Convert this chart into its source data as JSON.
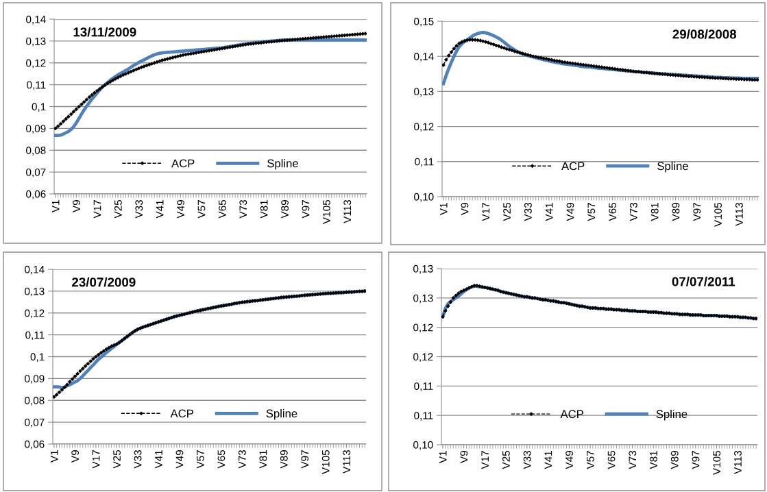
{
  "chart_data": [
    {
      "type": "line",
      "title": "13/11/2009",
      "categories": [
        "V1",
        null,
        null,
        null,
        null,
        null,
        null,
        null,
        "V9",
        null,
        null,
        null,
        null,
        null,
        null,
        null,
        "V17",
        null,
        null,
        null,
        null,
        null,
        null,
        null,
        "V25",
        null,
        null,
        null,
        null,
        null,
        null,
        null,
        "V33",
        null,
        null,
        null,
        null,
        null,
        null,
        null,
        "V41",
        null,
        null,
        null,
        null,
        null,
        null,
        null,
        "V49",
        null,
        null,
        null,
        null,
        null,
        null,
        null,
        "V57",
        null,
        null,
        null,
        null,
        null,
        null,
        null,
        "V65",
        null,
        null,
        null,
        null,
        null,
        null,
        null,
        "V73",
        null,
        null,
        null,
        null,
        null,
        null,
        null,
        "V81",
        null,
        null,
        null,
        null,
        null,
        null,
        null,
        "V89",
        null,
        null,
        null,
        null,
        null,
        null,
        null,
        "V97",
        null,
        null,
        null,
        null,
        null,
        null,
        null,
        "V105",
        null,
        null,
        null,
        null,
        null,
        null,
        null,
        "V113",
        null,
        null,
        null,
        null,
        null,
        null,
        null
      ],
      "ylim": [
        0.06,
        0.14
      ],
      "yticks": [
        {
          "value": 0.06,
          "label": "0,06"
        },
        {
          "value": 0.07,
          "label": "0,07"
        },
        {
          "value": 0.08,
          "label": "0,08"
        },
        {
          "value": 0.09,
          "label": "0,09"
        },
        {
          "value": 0.1,
          "label": "0,1"
        },
        {
          "value": 0.11,
          "label": "0,11"
        },
        {
          "value": 0.12,
          "label": "0,12"
        },
        {
          "value": 0.13,
          "label": "0,13"
        },
        {
          "value": 0.14,
          "label": "0,14"
        }
      ],
      "grid": "y",
      "legend": "bottom",
      "series": [
        {
          "name": "ACP",
          "color": "#000000",
          "marker": "diamond",
          "line_style": "dashed",
          "values": [
            0.09,
            0.091,
            0.0921,
            0.0932,
            0.0943,
            0.0954,
            0.0965,
            0.0977,
            0.0988,
            0.0999,
            0.101,
            0.1021,
            0.1032,
            0.1043,
            0.1053,
            0.1063,
            0.1072,
            0.1081,
            0.109,
            0.1098,
            0.1106,
            0.1113,
            0.112,
            0.1127,
            0.1133,
            0.1139,
            0.1145,
            0.115,
            0.1155,
            0.116,
            0.1165,
            0.117,
            0.1175,
            0.118,
            0.1184,
            0.1188,
            0.1192,
            0.1196,
            0.12,
            0.1204,
            0.1208,
            0.1212,
            0.1215,
            0.1218,
            0.1221,
            0.1224,
            0.1227,
            0.123,
            0.1233,
            0.1236,
            0.1238,
            0.124,
            0.1242,
            0.1244,
            0.1246,
            0.1248,
            0.125,
            0.1252,
            0.1254,
            0.1256,
            0.1258,
            0.126,
            0.1262,
            0.1264,
            0.1266,
            0.1268,
            0.127,
            0.1272,
            0.1274,
            0.1276,
            0.1278,
            0.128,
            0.1282,
            0.1284,
            0.1286,
            0.1287,
            0.1288,
            0.129,
            0.1291,
            0.1292,
            0.1294,
            0.1295,
            0.1296,
            0.1297,
            0.1298,
            0.13,
            0.1301,
            0.1302,
            0.1303,
            0.1304,
            0.1305,
            0.1306,
            0.1307,
            0.1308,
            0.1309,
            0.131,
            0.1311,
            0.1312,
            0.1313,
            0.1314,
            0.1315,
            0.1316,
            0.1317,
            0.1318,
            0.1319,
            0.132,
            0.1321,
            0.1322,
            0.1323,
            0.1324,
            0.1325,
            0.1326,
            0.1327,
            0.1328,
            0.1329,
            0.133,
            0.1331,
            0.1332,
            0.1333,
            0.1334
          ]
        },
        {
          "name": "Spline",
          "color": "#4f81bd",
          "marker": "none",
          "line_style": "solid",
          "values": [
            0.0868,
            0.0868,
            0.0869,
            0.0874,
            0.088,
            0.0886,
            0.0895,
            0.0908,
            0.0925,
            0.0945,
            0.0965,
            0.0985,
            0.1002,
            0.1018,
            0.1034,
            0.1048,
            0.1062,
            0.1076,
            0.1089,
            0.11,
            0.111,
            0.112,
            0.1129,
            0.1137,
            0.1145,
            0.1152,
            0.1158,
            0.1165,
            0.1172,
            0.118,
            0.1188,
            0.1195,
            0.1202,
            0.1208,
            0.1214,
            0.122,
            0.1226,
            0.1232,
            0.1237,
            0.1241,
            0.1244,
            0.1246,
            0.1247,
            0.1248,
            0.1249,
            0.125,
            0.1251,
            0.1252,
            0.1253,
            0.1254,
            0.1255,
            0.1256,
            0.1257,
            0.1258,
            0.1259,
            0.126,
            0.1261,
            0.1262,
            0.1263,
            0.1264,
            0.1265,
            0.1266,
            0.1267,
            0.1268,
            0.1269,
            0.1271,
            0.1273,
            0.1275,
            0.1277,
            0.1279,
            0.1281,
            0.1283,
            0.1285,
            0.1287,
            0.1289,
            0.129,
            0.1292,
            0.1294,
            0.1295,
            0.1296,
            0.1297,
            0.1298,
            0.1299,
            0.13,
            0.1301,
            0.1302,
            0.1303,
            0.1304,
            0.1305,
            0.1305,
            0.1305,
            0.1305,
            0.1305,
            0.1305,
            0.1305,
            0.1305,
            0.1305,
            0.1305,
            0.1305,
            0.1305,
            0.1305,
            0.1305,
            0.1305,
            0.1305,
            0.1305,
            0.1305,
            0.1305,
            0.1305,
            0.1305,
            0.1305,
            0.1305,
            0.1305,
            0.1305,
            0.1305,
            0.1305,
            0.1305,
            0.1305,
            0.1305,
            0.1305,
            0.1305
          ]
        }
      ]
    },
    {
      "type": "line",
      "title": "29/08/2008",
      "categories": [
        "V1",
        null,
        null,
        null,
        null,
        null,
        null,
        null,
        "V9",
        null,
        null,
        null,
        null,
        null,
        null,
        null,
        "V17",
        null,
        null,
        null,
        null,
        null,
        null,
        null,
        "V25",
        null,
        null,
        null,
        null,
        null,
        null,
        null,
        "V33",
        null,
        null,
        null,
        null,
        null,
        null,
        null,
        "V41",
        null,
        null,
        null,
        null,
        null,
        null,
        null,
        "V49",
        null,
        null,
        null,
        null,
        null,
        null,
        null,
        "V57",
        null,
        null,
        null,
        null,
        null,
        null,
        null,
        "V65",
        null,
        null,
        null,
        null,
        null,
        null,
        null,
        "V73",
        null,
        null,
        null,
        null,
        null,
        null,
        null,
        "V81",
        null,
        null,
        null,
        null,
        null,
        null,
        null,
        "V89",
        null,
        null,
        null,
        null,
        null,
        null,
        null,
        "V97",
        null,
        null,
        null,
        null,
        null,
        null,
        null,
        "V105",
        null,
        null,
        null,
        null,
        null,
        null,
        null,
        "V113",
        null,
        null,
        null,
        null,
        null,
        null,
        null
      ],
      "ylim": [
        0.1,
        0.15
      ],
      "yticks": [
        {
          "value": 0.1,
          "label": "0,10"
        },
        {
          "value": 0.11,
          "label": "0,11"
        },
        {
          "value": 0.12,
          "label": "0,12"
        },
        {
          "value": 0.13,
          "label": "0,13"
        },
        {
          "value": 0.14,
          "label": "0,14"
        },
        {
          "value": 0.15,
          "label": "0,15"
        }
      ],
      "grid": "y",
      "legend": "bottom",
      "series": [
        {
          "name": "ACP",
          "color": "#000000",
          "marker": "diamond",
          "line_style": "dashed",
          "values": [
            0.1375,
            0.139,
            0.1402,
            0.1412,
            0.1422,
            0.143,
            0.1437,
            0.1441,
            0.1444,
            0.1446,
            0.1447,
            0.1447,
            0.1447,
            0.1446,
            0.1445,
            0.1443,
            0.1441,
            0.1439,
            0.1436,
            0.1434,
            0.1431,
            0.1429,
            0.1426,
            0.1424,
            0.1421,
            0.1419,
            0.1417,
            0.1414,
            0.1412,
            0.141,
            0.1408,
            0.1406,
            0.1404,
            0.1402,
            0.14,
            0.1399,
            0.1397,
            0.1396,
            0.1394,
            0.1393,
            0.1391,
            0.139,
            0.1388,
            0.1387,
            0.1386,
            0.1384,
            0.1383,
            0.1382,
            0.1381,
            0.138,
            0.1379,
            0.1378,
            0.1377,
            0.1376,
            0.1375,
            0.1374,
            0.1373,
            0.1372,
            0.1371,
            0.137,
            0.1369,
            0.1368,
            0.1367,
            0.1366,
            0.1365,
            0.1364,
            0.1363,
            0.1362,
            0.1361,
            0.136,
            0.1359,
            0.1358,
            0.1357,
            0.1356,
            0.1356,
            0.1355,
            0.1354,
            0.1354,
            0.1353,
            0.1352,
            0.1351,
            0.1351,
            0.135,
            0.1349,
            0.1349,
            0.1348,
            0.1347,
            0.1347,
            0.1346,
            0.1346,
            0.1345,
            0.1344,
            0.1344,
            0.1343,
            0.1343,
            0.1342,
            0.1342,
            0.1341,
            0.1341,
            0.134,
            0.134,
            0.1339,
            0.1339,
            0.1338,
            0.1338,
            0.1338,
            0.1337,
            0.1337,
            0.1336,
            0.1336,
            0.1336,
            0.1335,
            0.1335,
            0.1335,
            0.1334,
            0.1334,
            0.1334,
            0.1333,
            0.1333,
            0.1333
          ]
        },
        {
          "name": "Spline",
          "color": "#4f81bd",
          "marker": "none",
          "line_style": "solid",
          "values": [
            0.1322,
            0.1345,
            0.1365,
            0.1383,
            0.14,
            0.1415,
            0.1428,
            0.1436,
            0.1442,
            0.1447,
            0.1452,
            0.1458,
            0.1462,
            0.1465,
            0.1467,
            0.1468,
            0.1467,
            0.1465,
            0.1462,
            0.1459,
            0.1455,
            0.1451,
            0.1446,
            0.144,
            0.1434,
            0.1428,
            0.1423,
            0.1418,
            0.1414,
            0.141,
            0.1407,
            0.1404,
            0.1402,
            0.14,
            0.1398,
            0.1396,
            0.1394,
            0.1392,
            0.139,
            0.1389,
            0.1387,
            0.1385,
            0.1384,
            0.1382,
            0.1381,
            0.1379,
            0.1378,
            0.1377,
            0.1376,
            0.1375,
            0.1374,
            0.1373,
            0.1372,
            0.1371,
            0.137,
            0.137,
            0.1369,
            0.1368,
            0.1367,
            0.1366,
            0.1366,
            0.1365,
            0.1364,
            0.1363,
            0.1363,
            0.1362,
            0.1361,
            0.136,
            0.136,
            0.1359,
            0.1358,
            0.1358,
            0.1357,
            0.1356,
            0.1356,
            0.1355,
            0.1354,
            0.1354,
            0.1353,
            0.1353,
            0.1352,
            0.1351,
            0.1351,
            0.135,
            0.135,
            0.1349,
            0.1349,
            0.1348,
            0.1348,
            0.1347,
            0.1347,
            0.1346,
            0.1346,
            0.1345,
            0.1345,
            0.1344,
            0.1344,
            0.1343,
            0.1343,
            0.1342,
            0.1342,
            0.1341,
            0.1341,
            0.134,
            0.134,
            0.134,
            0.1339,
            0.1339,
            0.1339,
            0.1338,
            0.1338,
            0.1338,
            0.1338,
            0.1337,
            0.1337,
            0.1337,
            0.1337,
            0.1337,
            0.1337,
            0.1337
          ]
        }
      ]
    },
    {
      "type": "line",
      "title": "23/07/2009",
      "categories": [
        "V1",
        null,
        null,
        null,
        null,
        null,
        null,
        null,
        "V9",
        null,
        null,
        null,
        null,
        null,
        null,
        null,
        "V17",
        null,
        null,
        null,
        null,
        null,
        null,
        null,
        "V25",
        null,
        null,
        null,
        null,
        null,
        null,
        null,
        "V33",
        null,
        null,
        null,
        null,
        null,
        null,
        null,
        "V41",
        null,
        null,
        null,
        null,
        null,
        null,
        null,
        "V49",
        null,
        null,
        null,
        null,
        null,
        null,
        null,
        "V57",
        null,
        null,
        null,
        null,
        null,
        null,
        null,
        "V65",
        null,
        null,
        null,
        null,
        null,
        null,
        null,
        "V73",
        null,
        null,
        null,
        null,
        null,
        null,
        null,
        "V81",
        null,
        null,
        null,
        null,
        null,
        null,
        null,
        "V89",
        null,
        null,
        null,
        null,
        null,
        null,
        null,
        "V97",
        null,
        null,
        null,
        null,
        null,
        null,
        null,
        "V105",
        null,
        null,
        null,
        null,
        null,
        null,
        null,
        "V113",
        null,
        null,
        null,
        null,
        null,
        null,
        null
      ],
      "ylim": [
        0.06,
        0.14
      ],
      "yticks": [
        {
          "value": 0.06,
          "label": "0,06"
        },
        {
          "value": 0.07,
          "label": "0,07"
        },
        {
          "value": 0.08,
          "label": "0,08"
        },
        {
          "value": 0.09,
          "label": "0,09"
        },
        {
          "value": 0.1,
          "label": "0,1"
        },
        {
          "value": 0.11,
          "label": "0,11"
        },
        {
          "value": 0.12,
          "label": "0,12"
        },
        {
          "value": 0.13,
          "label": "0,13"
        },
        {
          "value": 0.14,
          "label": "0,14"
        }
      ],
      "grid": "y",
      "legend": "bottom",
      "series": [
        {
          "name": "ACP",
          "color": "#000000",
          "marker": "diamond",
          "line_style": "dashed",
          "values": [
            0.0816,
            0.0826,
            0.0837,
            0.0848,
            0.086,
            0.0872,
            0.0885,
            0.0897,
            0.091,
            0.0922,
            0.0934,
            0.0945,
            0.0957,
            0.0968,
            0.0979,
            0.099,
            0.1,
            0.1009,
            0.1018,
            0.1026,
            0.1034,
            0.1041,
            0.1048,
            0.1053,
            0.1057,
            0.1065,
            0.1074,
            0.1083,
            0.1092,
            0.1101,
            0.111,
            0.1118,
            0.1125,
            0.113,
            0.1135,
            0.1139,
            0.1143,
            0.1147,
            0.1151,
            0.1155,
            0.1159,
            0.1163,
            0.1167,
            0.1171,
            0.1175,
            0.1179,
            0.1183,
            0.1186,
            0.1189,
            0.1192,
            0.1195,
            0.1198,
            0.1201,
            0.1204,
            0.1207,
            0.121,
            0.1212,
            0.1215,
            0.1217,
            0.122,
            0.1222,
            0.1225,
            0.1227,
            0.123,
            0.1232,
            0.1234,
            0.1236,
            0.1238,
            0.124,
            0.1243,
            0.1245,
            0.1247,
            0.1249,
            0.125,
            0.1252,
            0.1253,
            0.1255,
            0.1256,
            0.1257,
            0.1259,
            0.126,
            0.1262,
            0.1263,
            0.1265,
            0.1266,
            0.1268,
            0.1269,
            0.1271,
            0.1272,
            0.1273,
            0.1274,
            0.1275,
            0.1276,
            0.1277,
            0.1278,
            0.128,
            0.1281,
            0.1282,
            0.1283,
            0.1284,
            0.1285,
            0.1286,
            0.1287,
            0.1288,
            0.1289,
            0.129,
            0.129,
            0.1291,
            0.1292,
            0.1293,
            0.1293,
            0.1294,
            0.1295,
            0.1296,
            0.1296,
            0.1297,
            0.1298,
            0.1299,
            0.1299,
            0.13
          ]
        },
        {
          "name": "Spline",
          "color": "#4f81bd",
          "marker": "none",
          "line_style": "solid",
          "values": [
            0.0862,
            0.0862,
            0.0861,
            0.0858,
            0.086,
            0.0866,
            0.0872,
            0.0878,
            0.0884,
            0.089,
            0.09,
            0.0912,
            0.0925,
            0.0937,
            0.095,
            0.0962,
            0.0975,
            0.0988,
            0.0998,
            0.1008,
            0.1018,
            0.1028,
            0.1038,
            0.1046,
            0.1057,
            0.1065,
            0.1074,
            0.1083,
            0.1092,
            0.1101,
            0.111,
            0.1118,
            0.1125,
            0.113,
            0.1135,
            0.1139,
            0.1143,
            0.1147,
            0.1151,
            0.1155,
            0.1159,
            0.1163,
            0.1167,
            0.1171,
            0.1175,
            0.1179,
            0.1183,
            0.1186,
            0.1189,
            0.1192,
            0.1195,
            0.1198,
            0.1201,
            0.1204,
            0.1207,
            0.121,
            0.1212,
            0.1215,
            0.1217,
            0.122,
            0.1222,
            0.1225,
            0.1227,
            0.123,
            0.1232,
            0.1234,
            0.1236,
            0.1238,
            0.124,
            0.1243,
            0.1245,
            0.1247,
            0.1249,
            0.125,
            0.1252,
            0.1253,
            0.1255,
            0.1256,
            0.1257,
            0.1259,
            0.126,
            0.1262,
            0.1263,
            0.1265,
            0.1266,
            0.1268,
            0.1269,
            0.1271,
            0.1272,
            0.1273,
            0.1274,
            0.1275,
            0.1276,
            0.1277,
            0.1278,
            0.128,
            0.1281,
            0.1282,
            0.1283,
            0.1284,
            0.1285,
            0.1286,
            0.1287,
            0.1288,
            0.1289,
            0.129,
            0.129,
            0.1291,
            0.1292,
            0.1293,
            0.1293,
            0.1294,
            0.1295,
            0.1296,
            0.1296,
            0.1297,
            0.1298,
            0.1299,
            0.1299,
            0.13
          ]
        }
      ]
    },
    {
      "type": "line",
      "title": "07/07/2011",
      "categories": [
        "V1",
        null,
        null,
        null,
        null,
        null,
        null,
        null,
        "V9",
        null,
        null,
        null,
        null,
        null,
        null,
        null,
        "V17",
        null,
        null,
        null,
        null,
        null,
        null,
        null,
        "V25",
        null,
        null,
        null,
        null,
        null,
        null,
        null,
        "V33",
        null,
        null,
        null,
        null,
        null,
        null,
        null,
        "V41",
        null,
        null,
        null,
        null,
        null,
        null,
        null,
        "V49",
        null,
        null,
        null,
        null,
        null,
        null,
        null,
        "V57",
        null,
        null,
        null,
        null,
        null,
        null,
        null,
        "V65",
        null,
        null,
        null,
        null,
        null,
        null,
        null,
        "V73",
        null,
        null,
        null,
        null,
        null,
        null,
        null,
        "V81",
        null,
        null,
        null,
        null,
        null,
        null,
        null,
        "V89",
        null,
        null,
        null,
        null,
        null,
        null,
        null,
        "V97",
        null,
        null,
        null,
        null,
        null,
        null,
        null,
        "V105",
        null,
        null,
        null,
        null,
        null,
        null,
        null,
        "V113",
        null,
        null,
        null,
        null,
        null,
        null,
        null
      ],
      "ylim": [
        0.1,
        0.13
      ],
      "yticks": [
        {
          "value": 0.1,
          "label": "0,10"
        },
        {
          "value": 0.105,
          "label": "0,11"
        },
        {
          "value": 0.11,
          "label": "0,11"
        },
        {
          "value": 0.115,
          "label": "0,12"
        },
        {
          "value": 0.12,
          "label": "0,12"
        },
        {
          "value": 0.125,
          "label": "0,13"
        },
        {
          "value": 0.13,
          "label": "0,13"
        }
      ],
      "grid": "y",
      "legend": "bottom",
      "series": [
        {
          "name": "ACP",
          "color": "#000000",
          "marker": "diamond",
          "line_style": "dashed",
          "values": [
            0.1218,
            0.1228,
            0.1236,
            0.1243,
            0.125,
            0.1254,
            0.1258,
            0.1261,
            0.1263,
            0.1265,
            0.1267,
            0.1269,
            0.1271,
            0.1271,
            0.127,
            0.1269,
            0.1268,
            0.1267,
            0.1266,
            0.1265,
            0.1264,
            0.1263,
            0.1261,
            0.126,
            0.1259,
            0.1258,
            0.1257,
            0.1256,
            0.1255,
            0.1254,
            0.1253,
            0.1252,
            0.1252,
            0.1251,
            0.125,
            0.125,
            0.1249,
            0.1248,
            0.1247,
            0.1247,
            0.1246,
            0.1245,
            0.1245,
            0.1244,
            0.1243,
            0.1242,
            0.1242,
            0.1241,
            0.124,
            0.1239,
            0.1238,
            0.1237,
            0.1236,
            0.1236,
            0.1235,
            0.1234,
            0.1233,
            0.1233,
            0.1233,
            0.1232,
            0.1232,
            0.1232,
            0.1231,
            0.1231,
            0.1231,
            0.123,
            0.123,
            0.123,
            0.1229,
            0.1229,
            0.1229,
            0.1228,
            0.1228,
            0.1228,
            0.1227,
            0.1227,
            0.1227,
            0.1227,
            0.1226,
            0.1226,
            0.1226,
            0.1226,
            0.1225,
            0.1225,
            0.1224,
            0.1224,
            0.1224,
            0.1223,
            0.1223,
            0.1223,
            0.1222,
            0.1222,
            0.1222,
            0.1222,
            0.1221,
            0.1221,
            0.1221,
            0.1221,
            0.1221,
            0.122,
            0.122,
            0.122,
            0.122,
            0.122,
            0.122,
            0.1219,
            0.1219,
            0.1219,
            0.1219,
            0.1218,
            0.1218,
            0.1218,
            0.1218,
            0.1217,
            0.1217,
            0.1217,
            0.1216,
            0.1216,
            0.1215,
            0.1215
          ]
        },
        {
          "name": "Spline",
          "color": "#4f81bd",
          "marker": "none",
          "line_style": "solid",
          "values": [
            0.1218,
            0.1232,
            0.124,
            0.1244,
            0.1247,
            0.125,
            0.1253,
            0.1257,
            0.1261,
            0.1264,
            0.1267,
            0.1269,
            0.127,
            0.127,
            0.1269,
            0.1268,
            0.1268,
            0.1267,
            0.1266,
            0.1265,
            0.1264,
            0.1263,
            0.1261,
            0.126,
            0.1259,
            0.1258,
            0.1257,
            0.1256,
            0.1255,
            0.1254,
            0.1253,
            0.1252,
            0.1252,
            0.1251,
            0.125,
            0.125,
            0.1249,
            0.1248,
            0.1247,
            0.1247,
            0.1246,
            0.1245,
            0.1245,
            0.1244,
            0.1243,
            0.1242,
            0.1242,
            0.1241,
            0.124,
            0.1239,
            0.1238,
            0.1237,
            0.1236,
            0.1236,
            0.1235,
            0.1234,
            0.1233,
            0.1233,
            0.1233,
            0.1232,
            0.1232,
            0.1232,
            0.1231,
            0.1231,
            0.1231,
            0.123,
            0.123,
            0.123,
            0.1229,
            0.1229,
            0.1229,
            0.1228,
            0.1228,
            0.1228,
            0.1227,
            0.1227,
            0.1227,
            0.1227,
            0.1226,
            0.1226,
            0.1226,
            0.1226,
            0.1225,
            0.1225,
            0.1224,
            0.1224,
            0.1224,
            0.1223,
            0.1223,
            0.1223,
            0.1222,
            0.1222,
            0.1222,
            0.1222,
            0.1221,
            0.1221,
            0.1221,
            0.1221,
            0.1221,
            0.122,
            0.122,
            0.122,
            0.122,
            0.122,
            0.122,
            0.1219,
            0.1219,
            0.1219,
            0.1219,
            0.1218,
            0.1218,
            0.1218,
            0.1218,
            0.1217,
            0.1217,
            0.1217,
            0.1216,
            0.1216,
            0.1215,
            0.1215
          ]
        }
      ]
    }
  ]
}
